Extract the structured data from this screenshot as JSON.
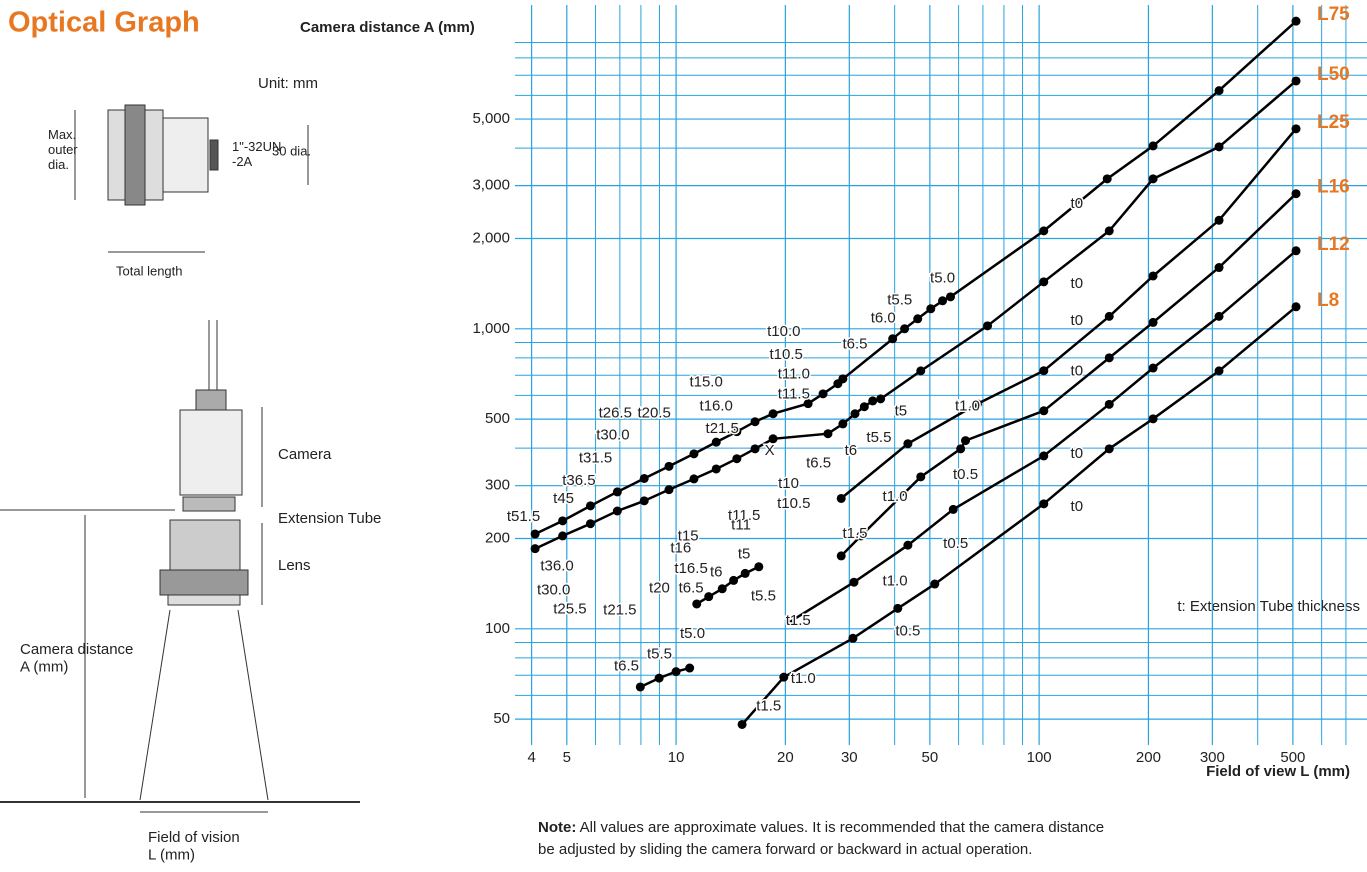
{
  "title": "Optical Graph",
  "diagram": {
    "unit": "Unit: mm",
    "max_outer": "Max.\nouter\ndia.",
    "thread": "1\"-32UN\n-2A",
    "dia": "30 dia.",
    "total_length": "Total length",
    "camera": "Camera",
    "tube": "Extension Tube",
    "lens": "Lens",
    "distance": "Camera distance\nA (mm)",
    "field": "Field of vision\nL (mm)"
  },
  "chart_data": {
    "type": "line",
    "y_label": "Camera distance A (mm)",
    "x_label": "Field of view L (mm)",
    "note_bold": "Note:",
    "note": "All values are approximate values. It is recommended that the camera distance\nbe adjusted by sliding the camera forward or backward in actual operation.",
    "legend_note": "t: Extension Tube thickness",
    "log_x": true,
    "log_y": true,
    "grid": true,
    "xlim": [
      3.6,
      800
    ],
    "ylim": [
      41,
      12000
    ],
    "xticks": [
      4,
      5,
      10,
      20,
      30,
      50,
      100,
      200,
      300,
      500
    ],
    "xminor": [
      6,
      7,
      8,
      9,
      40,
      60,
      70,
      80,
      90,
      400,
      600,
      700
    ],
    "yticks": [
      50,
      100,
      200,
      300,
      500,
      {
        "value": 1000,
        "label": "1,000"
      },
      {
        "value": 2000,
        "label": "2,000"
      },
      {
        "value": 3000,
        "label": "3,000"
      },
      {
        "value": 5000,
        "label": "5,000"
      }
    ],
    "yminor": [
      60,
      70,
      80,
      90,
      400,
      600,
      700,
      800,
      900,
      4000,
      6000,
      7000,
      8000,
      9000
    ],
    "label_color": "#e87722",
    "series": [
      {
        "name": "L75",
        "color": "#000000",
        "x": [
          4.09,
          4.87,
          5.81,
          6.89,
          8.17,
          9.56,
          11.2,
          12.9,
          14.7,
          16.5,
          18.5,
          23.1,
          25.4,
          27.9,
          28.8,
          39.5,
          42.6,
          46.3,
          50.3,
          54.2,
          57.0,
          103,
          154,
          206,
          313,
          510
        ],
        "values": [
          207,
          229,
          257,
          286,
          317,
          348,
          383,
          419,
          454,
          490,
          521,
          563,
          607,
          656,
          681,
          926,
          1000,
          1080,
          1166,
          1240,
          1278,
          2120,
          3160,
          4070,
          6220,
          10600
        ]
      },
      {
        "name": "L50",
        "color": "#000000",
        "x": [
          4.09,
          4.87,
          5.81,
          6.89,
          8.17,
          9.56,
          11.2,
          12.9,
          14.7,
          16.5,
          18.5,
          26.2,
          28.8,
          31.1,
          33.0,
          34.8,
          36.6,
          47.2,
          72.1,
          103,
          156,
          206,
          313,
          510
        ],
        "values": [
          185,
          204,
          224,
          247,
          267,
          291,
          316,
          341,
          369,
          398,
          430,
          447,
          482,
          521,
          550,
          575,
          584,
          724,
          1023,
          1434,
          2120,
          3160,
          4040,
          6700
        ]
      },
      {
        "name": "L25",
        "color": "#000000",
        "x": [
          11.4,
          12.3,
          13.4,
          14.4,
          15.5,
          16.9,
          22,
          28.5,
          43.5,
          67.6,
          103,
          156,
          206,
          313,
          510
        ],
        "values": [
          121,
          128,
          136,
          145,
          153,
          161,
          null,
          272,
          414,
          562,
          725,
          1100,
          1500,
          2300,
          4640
        ]
      },
      {
        "name": "L16",
        "color": "#000000",
        "x": [
          7.97,
          8.98,
          10,
          10.9,
          20,
          28.5,
          32.3,
          47.2,
          60.8,
          62.7,
          103,
          156,
          206,
          313,
          510
        ],
        "values": [
          64,
          68.5,
          72,
          74,
          null,
          175,
          204,
          321,
          398,
          424,
          533,
          800,
          1050,
          1600,
          2820
        ]
      },
      {
        "name": "L12",
        "color": "#000000",
        "x": [
          20.7,
          30.9,
          43.5,
          58,
          103,
          156,
          206,
          313,
          510
        ],
        "values": [
          106,
          143,
          190,
          250,
          377,
          560,
          740,
          1100,
          1820
        ]
      },
      {
        "name": "L8",
        "color": "#000000",
        "x": [
          15.2,
          19.8,
          30.7,
          40.8,
          51.6,
          103,
          156,
          206,
          313,
          510
        ],
        "values": [
          48,
          69,
          93,
          117,
          141,
          261,
          398,
          501,
          724,
          1184
        ]
      }
    ],
    "annotations": [
      {
        "text": "t0",
        "x": 127,
        "y": 2610
      },
      {
        "text": "t0",
        "x": 127,
        "y": 1410
      },
      {
        "text": "t0",
        "x": 127,
        "y": 1060
      },
      {
        "text": "t0",
        "x": 127,
        "y": 719
      },
      {
        "text": "t0",
        "x": 127,
        "y": 383
      },
      {
        "text": "t0",
        "x": 127,
        "y": 255
      },
      {
        "text": "t5.0",
        "x": 54.2,
        "y": 1470
      },
      {
        "text": "t5.5",
        "x": 41.3,
        "y": 1240
      },
      {
        "text": "t6.0",
        "x": 37.2,
        "y": 1080
      },
      {
        "text": "t6.5",
        "x": 31.1,
        "y": 885
      },
      {
        "text": "t10.0",
        "x": 19.8,
        "y": 977
      },
      {
        "text": "t10.5",
        "x": 20.1,
        "y": 819
      },
      {
        "text": "t11.0",
        "x": 21.1,
        "y": 703
      },
      {
        "text": "t11.5",
        "x": 21.1,
        "y": 603
      },
      {
        "text": "t15.0",
        "x": 12.1,
        "y": 661
      },
      {
        "text": "t16.0",
        "x": 12.9,
        "y": 550
      },
      {
        "text": "t21.5",
        "x": 13.4,
        "y": 464
      },
      {
        "text": "t20.5",
        "x": 8.7,
        "y": 521
      },
      {
        "text": "t26.5",
        "x": 6.8,
        "y": 521
      },
      {
        "text": "t30.0",
        "x": 6.7,
        "y": 440
      },
      {
        "text": "t31.5",
        "x": 6.0,
        "y": 369
      },
      {
        "text": "t36.5",
        "x": 5.4,
        "y": 311
      },
      {
        "text": "t45",
        "x": 4.9,
        "y": 271
      },
      {
        "text": "t51.5",
        "x": 3.8,
        "y": 236
      },
      {
        "text": "t5",
        "x": 41.6,
        "y": 529
      },
      {
        "text": "t5.5",
        "x": 36.2,
        "y": 433
      },
      {
        "text": "t6",
        "x": 30.3,
        "y": 392
      },
      {
        "text": "t6.5",
        "x": 24.7,
        "y": 355
      },
      {
        "text": "X",
        "x": 18.1,
        "y": 392
      },
      {
        "text": "t10",
        "x": 20.4,
        "y": 304
      },
      {
        "text": "t10.5",
        "x": 21.1,
        "y": 261
      },
      {
        "text": "t11.5",
        "x": 15.4,
        "y": 238
      },
      {
        "text": "t11",
        "x": 15.1,
        "y": 221
      },
      {
        "text": "t15",
        "x": 10.8,
        "y": 203
      },
      {
        "text": "t16",
        "x": 10.3,
        "y": 185
      },
      {
        "text": "t16.5",
        "x": 11.0,
        "y": 158
      },
      {
        "text": "t20",
        "x": 9.0,
        "y": 136
      },
      {
        "text": "t21.5",
        "x": 7.0,
        "y": 115
      },
      {
        "text": "t25.5",
        "x": 5.1,
        "y": 116
      },
      {
        "text": "t30.0",
        "x": 4.6,
        "y": 134
      },
      {
        "text": "t36.0",
        "x": 4.7,
        "y": 161
      },
      {
        "text": "t5",
        "x": 15.4,
        "y": 177
      },
      {
        "text": "t6",
        "x": 12.9,
        "y": 154
      },
      {
        "text": "t6.5",
        "x": 11.0,
        "y": 136
      },
      {
        "text": "t5.5",
        "x": 17.4,
        "y": 128
      },
      {
        "text": "t5.0",
        "x": 11.1,
        "y": 96
      },
      {
        "text": "t5.5",
        "x": 9.0,
        "y": 82
      },
      {
        "text": "t6.5",
        "x": 7.3,
        "y": 75
      },
      {
        "text": "t1.5",
        "x": 18.0,
        "y": 55
      },
      {
        "text": "t1.0",
        "x": 22.4,
        "y": 68
      },
      {
        "text": "t1.5",
        "x": 21.7,
        "y": 106
      },
      {
        "text": "t1.0",
        "x": 40.1,
        "y": 144
      },
      {
        "text": "t0.5",
        "x": 43.5,
        "y": 98
      },
      {
        "text": "t1.5",
        "x": 31.1,
        "y": 207
      },
      {
        "text": "t0.5",
        "x": 58.9,
        "y": 192
      },
      {
        "text": "t1.0",
        "x": 40.1,
        "y": 275
      },
      {
        "text": "t0.5",
        "x": 62.7,
        "y": 326
      },
      {
        "text": "t1.0",
        "x": 63.5,
        "y": 550
      }
    ]
  }
}
